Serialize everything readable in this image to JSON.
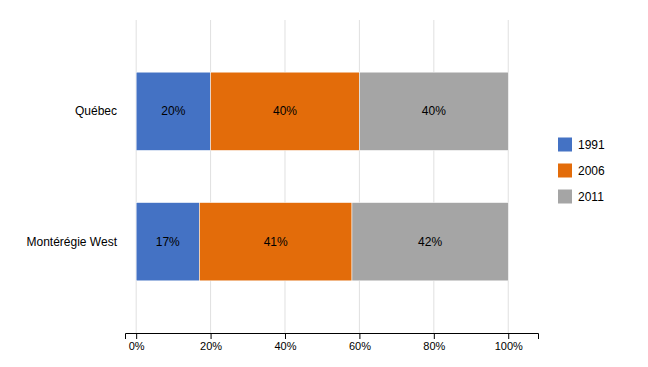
{
  "chart_data": {
    "type": "bar",
    "orientation": "horizontal",
    "stacked": true,
    "categories": [
      "Québec",
      "Montérégie West"
    ],
    "series": [
      {
        "name": "1991",
        "color": "#4472C4",
        "values": [
          20,
          17
        ],
        "value_labels": [
          "20%",
          "17%"
        ]
      },
      {
        "name": "2006",
        "color": "#E36C0A",
        "values": [
          40,
          41
        ],
        "value_labels": [
          "40%",
          "41%"
        ]
      },
      {
        "name": "2011",
        "color": "#A5A5A5",
        "values": [
          40,
          42
        ],
        "value_labels": [
          "40%",
          "42%"
        ]
      }
    ],
    "xlim": [
      -3,
      108
    ],
    "xticks": [
      {
        "value": 0,
        "label": "0%"
      },
      {
        "value": 20,
        "label": "20%"
      },
      {
        "value": 40,
        "label": "40%"
      },
      {
        "value": 60,
        "label": "60%"
      },
      {
        "value": 80,
        "label": "80%"
      },
      {
        "value": 100,
        "label": "100%"
      }
    ],
    "grid": true,
    "legend": "right",
    "data_labels": true
  }
}
